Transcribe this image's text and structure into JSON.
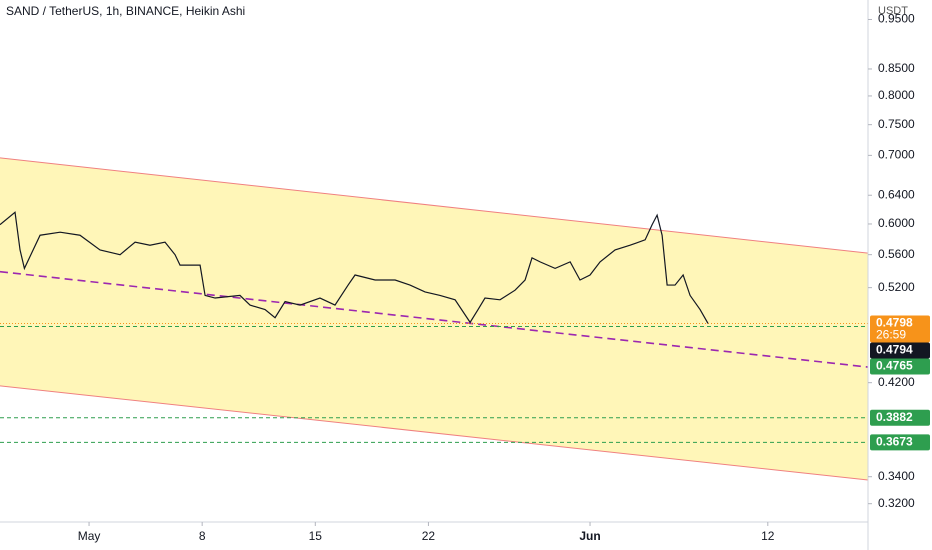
{
  "chart_data": {
    "type": "line",
    "title": "SAND / TetherUS, 1h, BINANCE, Heikin Ashi",
    "y_unit": "USDT",
    "log_scale": true,
    "xlim": [
      -5.51,
      48.2
    ],
    "ylim": [
      0.3071,
      0.9925
    ],
    "xticks": [
      {
        "value": 0,
        "label": "May"
      },
      {
        "value": 7,
        "label": "8"
      },
      {
        "value": 14,
        "label": "15"
      },
      {
        "value": 21,
        "label": "22"
      },
      {
        "value": 31,
        "label": "Jun"
      },
      {
        "value": 42,
        "label": "12"
      }
    ],
    "yticks": [
      {
        "value": 0.95,
        "label": "0.9500"
      },
      {
        "value": 0.85,
        "label": "0.8500"
      },
      {
        "value": 0.8,
        "label": "0.8000"
      },
      {
        "value": 0.75,
        "label": "0.7500"
      },
      {
        "value": 0.7,
        "label": "0.7000"
      },
      {
        "value": 0.64,
        "label": "0.6400"
      },
      {
        "value": 0.6,
        "label": "0.6000"
      },
      {
        "value": 0.56,
        "label": "0.5600"
      },
      {
        "value": 0.52,
        "label": "0.5200"
      },
      {
        "value": 0.42,
        "label": "0.4200"
      },
      {
        "value": 0.34,
        "label": "0.3400"
      },
      {
        "value": 0.32,
        "label": "0.3200"
      }
    ],
    "series": [
      {
        "color": "#131722",
        "x": [
          -5.51,
          -4.58,
          -4.27,
          -4.0,
          -3.03,
          -1.79,
          -0.56,
          0.68,
          1.92,
          2.85,
          3.77,
          4.7,
          5.32,
          5.63,
          6.87,
          7.18,
          7.8,
          9.34,
          9.96,
          10.89,
          11.51,
          12.13,
          13.06,
          14.29,
          15.22,
          16.03,
          16.46,
          17.7,
          18.94,
          19.86,
          20.79,
          21.72,
          22.65,
          23.58,
          24.07,
          24.5,
          25.43,
          26.36,
          26.98,
          27.41,
          27.91,
          28.84,
          29.77,
          30.38,
          31.0,
          31.62,
          32.55,
          33.48,
          34.41,
          34.84,
          35.15,
          35.46,
          35.77,
          36.26,
          36.76,
          37.19,
          37.81,
          38.3
        ],
        "values": [
          0.599,
          0.616,
          0.566,
          0.543,
          0.585,
          0.589,
          0.585,
          0.566,
          0.56,
          0.576,
          0.572,
          0.576,
          0.56,
          0.547,
          0.547,
          0.511,
          0.508,
          0.511,
          0.5,
          0.495,
          0.486,
          0.504,
          0.5,
          0.508,
          0.5,
          0.523,
          0.535,
          0.529,
          0.529,
          0.523,
          0.515,
          0.511,
          0.506,
          0.481,
          0.495,
          0.508,
          0.506,
          0.517,
          0.529,
          0.556,
          0.551,
          0.543,
          0.551,
          0.529,
          0.535,
          0.551,
          0.566,
          0.572,
          0.579,
          0.599,
          0.612,
          0.585,
          0.523,
          0.523,
          0.535,
          0.511,
          0.495,
          0.4798
        ]
      }
    ],
    "channel": {
      "x": [
        -5.51,
        48.2
      ],
      "upper": [
        0.696,
        0.562
      ],
      "middle": [
        0.539,
        0.435
      ],
      "lower": [
        0.417,
        0.3375
      ],
      "fill": "#fff6b8",
      "edge_color": "#f08080",
      "middle_color": "#9c27b0"
    },
    "price_labels": [
      {
        "value": 0.4798,
        "label": "0.4798",
        "sublabel": "26:59",
        "color": "#f7931a",
        "line": "dotted"
      },
      {
        "value": 0.4794,
        "label": "0.4794",
        "color": "#131722"
      },
      {
        "value": 0.4765,
        "label": "0.4765",
        "color": "#2e9e4f",
        "line": "dashed"
      },
      {
        "value": 0.3882,
        "label": "0.3882",
        "color": "#2e9e4f",
        "line": "dashed"
      },
      {
        "value": 0.3673,
        "label": "0.3673",
        "color": "#2e9e4f",
        "line": "dashed"
      }
    ]
  }
}
